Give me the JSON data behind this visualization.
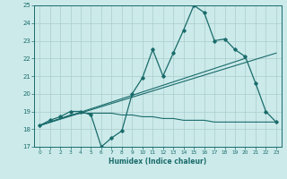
{
  "xlabel": "Humidex (Indice chaleur)",
  "bg_color": "#cceaea",
  "grid_color": "#aacccc",
  "line_color": "#1a6b6b",
  "xlim": [
    -0.5,
    23.5
  ],
  "ylim": [
    17,
    25
  ],
  "xticks": [
    0,
    1,
    2,
    3,
    4,
    5,
    6,
    7,
    8,
    9,
    10,
    11,
    12,
    13,
    14,
    15,
    16,
    17,
    18,
    19,
    20,
    21,
    22,
    23
  ],
  "yticks": [
    17,
    18,
    19,
    20,
    21,
    22,
    23,
    24,
    25
  ],
  "line1_x": [
    0,
    1,
    2,
    3,
    4,
    5,
    6,
    7,
    8,
    9,
    10,
    11,
    12,
    13,
    14,
    15,
    16,
    17,
    18,
    19,
    20,
    21,
    22,
    23
  ],
  "line1_y": [
    18.2,
    18.5,
    18.7,
    19.0,
    19.0,
    18.8,
    17.0,
    17.5,
    17.9,
    20.0,
    20.9,
    22.5,
    21.0,
    22.3,
    23.6,
    25.0,
    24.6,
    23.0,
    23.1,
    22.5,
    22.1,
    20.6,
    19.0,
    18.4
  ],
  "line2_x": [
    0,
    23
  ],
  "line2_y": [
    18.2,
    22.3
  ],
  "line3_x": [
    0,
    20
  ],
  "line3_y": [
    18.2,
    22.0
  ],
  "line4_x": [
    0,
    1,
    2,
    3,
    4,
    5,
    6,
    7,
    8,
    9,
    10,
    11,
    12,
    13,
    14,
    15,
    16,
    17,
    18,
    19,
    20,
    21,
    22,
    23
  ],
  "line4_y": [
    18.2,
    18.4,
    18.6,
    18.8,
    18.9,
    18.9,
    18.9,
    18.9,
    18.8,
    18.8,
    18.7,
    18.7,
    18.6,
    18.6,
    18.5,
    18.5,
    18.5,
    18.4,
    18.4,
    18.4,
    18.4,
    18.4,
    18.4,
    18.4
  ]
}
